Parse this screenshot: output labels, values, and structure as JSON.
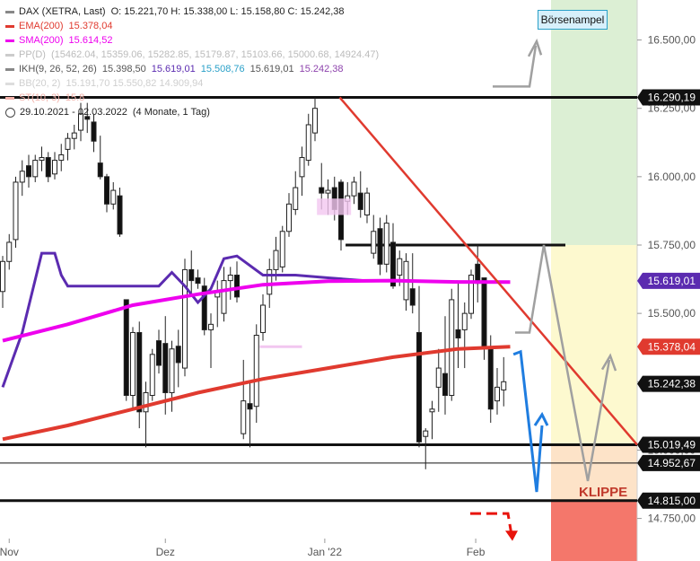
{
  "legend": {
    "instrument": "DAX (XETRA, Last)",
    "ohlc": "O: 15.221,70  H: 15.338,00  L: 15.158,80  C: 15.242,38",
    "ema_label": "EMA(200)",
    "ema_value": "15.378,04",
    "sma_label": "SMA(200)",
    "sma_value": "15.614,52",
    "pp_label": "PP(D)",
    "pp_values": "(15462.04, 15359.06, 15282.85, 15179.87, 15103.66, 15000.68, 14924.47)",
    "ikh_label": "IKH(9, 26, 52, 26)",
    "ikh_v1": "15.398,50",
    "ikh_v2": "15.619,01",
    "ikh_v3": "15.508,76",
    "ikh_v4": "15.619,01",
    "ikh_v5": "15.242,38",
    "bb_label": "BB(20, 2)",
    "bb_values": "15.191,70  15.550,82  14.909,94",
    "st_label": "ST(10, 3)",
    "st_value": "15.8",
    "period": "29.10.2021 - 02.03.2022",
    "period_extra": "(4 Monate, 1 Tag)"
  },
  "annotations": {
    "ampel_label": "Börsenampel",
    "klippe_label": "KLIPPE"
  },
  "colors": {
    "ema": "#e03a2f",
    "sma": "#ee00ee",
    "ikh": "#5b2bb0",
    "trend": "#e03a2f",
    "blue_path": "#1f7de0",
    "gray_path": "#a0a0a0",
    "zone_green": "#dcefd4",
    "zone_yellow": "#fdf9cf",
    "zone_orange": "#fde3c8",
    "zone_red": "#f4776b"
  },
  "chart_data": {
    "type": "candlestick",
    "x_ticks": [
      "Nov",
      "Dez",
      "Jan '22",
      "Feb"
    ],
    "y_ticks": [
      14750,
      15000,
      15250,
      15500,
      15750,
      16000,
      16250,
      16500
    ],
    "y_tick_labels": [
      "14.750,00",
      "15.000,00",
      "15.250,00",
      "15.500,00",
      "15.750,00",
      "16.000,00",
      "16.250,00",
      "16.500,00"
    ],
    "ylim": [
      14660,
      16620
    ],
    "candles": [
      [
        15580,
        15710,
        15520,
        15690
      ],
      [
        15690,
        15790,
        15660,
        15760
      ],
      [
        15770,
        16000,
        15740,
        15980
      ],
      [
        15980,
        16060,
        15930,
        16020
      ],
      [
        16040,
        16080,
        15960,
        16000
      ],
      [
        16000,
        16080,
        15980,
        16060
      ],
      [
        16060,
        16110,
        16020,
        16070
      ],
      [
        16070,
        16090,
        15980,
        16000
      ],
      [
        16010,
        16090,
        15990,
        16060
      ],
      [
        16060,
        16120,
        16020,
        16080
      ],
      [
        16100,
        16160,
        16060,
        16140
      ],
      [
        16140,
        16190,
        16100,
        16160
      ],
      [
        16170,
        16270,
        16130,
        16230
      ],
      [
        16220,
        16270,
        16160,
        16210
      ],
      [
        16200,
        16230,
        16090,
        16130
      ],
      [
        16050,
        16150,
        15990,
        16000
      ],
      [
        16000,
        16010,
        15870,
        15900
      ],
      [
        15900,
        15980,
        15880,
        15950
      ],
      [
        15930,
        15960,
        15780,
        15790
      ],
      [
        15550,
        15550,
        15180,
        15200
      ],
      [
        15200,
        15450,
        15150,
        15430
      ],
      [
        15430,
        15470,
        15080,
        15140
      ],
      [
        15140,
        15250,
        15010,
        15210
      ],
      [
        15200,
        15370,
        15180,
        15350
      ],
      [
        15400,
        15440,
        15280,
        15310
      ],
      [
        15390,
        15490,
        15130,
        15210
      ],
      [
        15210,
        15400,
        15140,
        15370
      ],
      [
        15380,
        15440,
        15230,
        15320
      ],
      [
        15300,
        15700,
        15270,
        15660
      ],
      [
        15660,
        15730,
        15560,
        15620
      ],
      [
        15630,
        15660,
        15590,
        15610
      ],
      [
        15600,
        15630,
        15420,
        15440
      ],
      [
        15440,
        15500,
        15300,
        15460
      ],
      [
        15560,
        15620,
        15450,
        15580
      ],
      [
        15500,
        15670,
        15470,
        15620
      ],
      [
        15620,
        15670,
        15550,
        15640
      ],
      [
        15640,
        15690,
        15540,
        15560
      ],
      [
        15060,
        15330,
        15040,
        15180
      ],
      [
        15170,
        15250,
        15010,
        15150
      ],
      [
        15160,
        15460,
        15100,
        15420
      ],
      [
        15430,
        15570,
        15400,
        15530
      ],
      [
        15570,
        15700,
        15520,
        15660
      ],
      [
        15660,
        15780,
        15620,
        15730
      ],
      [
        15670,
        15820,
        15650,
        15800
      ],
      [
        15800,
        15940,
        15780,
        15900
      ],
      [
        15880,
        16020,
        15860,
        15960
      ],
      [
        16000,
        16110,
        15930,
        16070
      ],
      [
        16060,
        16230,
        16040,
        16190
      ],
      [
        16160,
        16290,
        16130,
        16250
      ],
      [
        15960,
        16050,
        15880,
        15940
      ],
      [
        15940,
        15990,
        15860,
        15950
      ],
      [
        15960,
        16000,
        15840,
        15880
      ],
      [
        15980,
        15990,
        15730,
        15770
      ],
      [
        15910,
        15980,
        15860,
        15930
      ],
      [
        15930,
        16000,
        15900,
        15980
      ],
      [
        15940,
        16020,
        15850,
        15880
      ],
      [
        15860,
        15960,
        15830,
        15940
      ],
      [
        15720,
        15860,
        15700,
        15800
      ],
      [
        15810,
        15850,
        15640,
        15680
      ],
      [
        15680,
        15860,
        15650,
        15830
      ],
      [
        15760,
        15830,
        15590,
        15600
      ],
      [
        15640,
        15730,
        15600,
        15700
      ],
      [
        15550,
        15720,
        15510,
        15690
      ],
      [
        15590,
        15720,
        15500,
        15530
      ],
      [
        15430,
        15600,
        15010,
        15030
      ],
      [
        15050,
        15080,
        14930,
        15070
      ],
      [
        15140,
        15180,
        15040,
        15150
      ],
      [
        15230,
        15370,
        15140,
        15300
      ],
      [
        15280,
        15490,
        15130,
        15200
      ],
      [
        15200,
        15590,
        15180,
        15550
      ],
      [
        15440,
        15620,
        15300,
        15410
      ],
      [
        15440,
        15540,
        15300,
        15500
      ],
      [
        15500,
        15660,
        15480,
        15640
      ],
      [
        15680,
        15750,
        15540,
        15610
      ],
      [
        15630,
        15630,
        15330,
        15370
      ],
      [
        15370,
        15420,
        15100,
        15150
      ],
      [
        15180,
        15300,
        15130,
        15230
      ],
      [
        15220,
        15340,
        15160,
        15250
      ]
    ],
    "ema200": [
      [
        0,
        15040
      ],
      [
        10,
        15090
      ],
      [
        20,
        15150
      ],
      [
        30,
        15210
      ],
      [
        40,
        15260
      ],
      [
        50,
        15300
      ],
      [
        60,
        15340
      ],
      [
        70,
        15370
      ],
      [
        78,
        15378
      ]
    ],
    "sma200": [
      [
        0,
        15400
      ],
      [
        10,
        15460
      ],
      [
        20,
        15530
      ],
      [
        30,
        15570
      ],
      [
        40,
        15605
      ],
      [
        50,
        15618
      ],
      [
        60,
        15620
      ],
      [
        70,
        15615
      ],
      [
        78,
        15614.52
      ]
    ],
    "ikh": [
      [
        0,
        15230
      ],
      [
        3,
        15430
      ],
      [
        6,
        15720
      ],
      [
        8,
        15720
      ],
      [
        9,
        15640
      ],
      [
        10,
        15600
      ],
      [
        12,
        15600
      ],
      [
        20,
        15600
      ],
      [
        24,
        15600
      ],
      [
        26,
        15650
      ],
      [
        28,
        15600
      ],
      [
        30,
        15540
      ],
      [
        32,
        15590
      ],
      [
        34,
        15700
      ],
      [
        36,
        15710
      ],
      [
        40,
        15640
      ],
      [
        45,
        15640
      ],
      [
        50,
        15630
      ],
      [
        56,
        15619.01
      ]
    ],
    "levels": [
      {
        "value": 16290.19,
        "label": "16.290,19"
      },
      {
        "value": 15750,
        "label": ""
      },
      {
        "value": 15019.49,
        "label": "15.019,49"
      },
      {
        "value": 14952.67,
        "label": "14.952,67"
      },
      {
        "value": 14815.0,
        "label": "14.815,00"
      }
    ],
    "price_tags": [
      {
        "value": 16290.19,
        "label": "16.290,19",
        "color": "#111111"
      },
      {
        "value": 15619.01,
        "label": "15.619,01",
        "color": "#5b2bb0"
      },
      {
        "value": 15378.04,
        "label": "15.378,04",
        "color": "#e03a2f"
      },
      {
        "value": 15242.38,
        "label": "15.242,38",
        "color": "#111111"
      },
      {
        "value": 15019.49,
        "label": "15.019,49",
        "color": "#111111"
      },
      {
        "value": 14952.67,
        "label": "14.952,67",
        "color": "#ffffff"
      },
      {
        "value": 14815.0,
        "label": "14.815,00",
        "color": "#ffffff"
      }
    ]
  }
}
